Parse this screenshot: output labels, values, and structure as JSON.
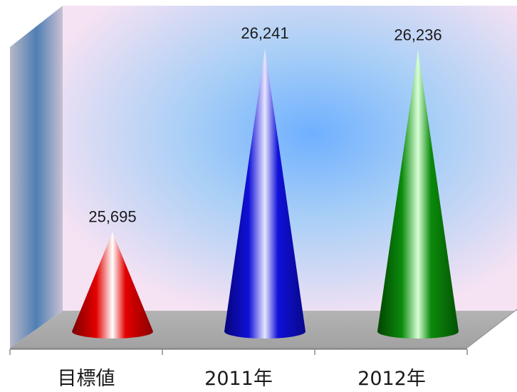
{
  "chart_data": {
    "type": "bar",
    "bar_shape": "3d-cone",
    "categories": [
      "目標値",
      "2011年",
      "2012年"
    ],
    "values": [
      25695,
      26241,
      26236
    ],
    "value_labels": [
      "25,695",
      "26,241",
      "26,236"
    ],
    "colors": [
      "#e30000",
      "#1010d8",
      "#0a8a0a"
    ],
    "grid": false,
    "legend": "none",
    "y_axis_visible": false
  }
}
